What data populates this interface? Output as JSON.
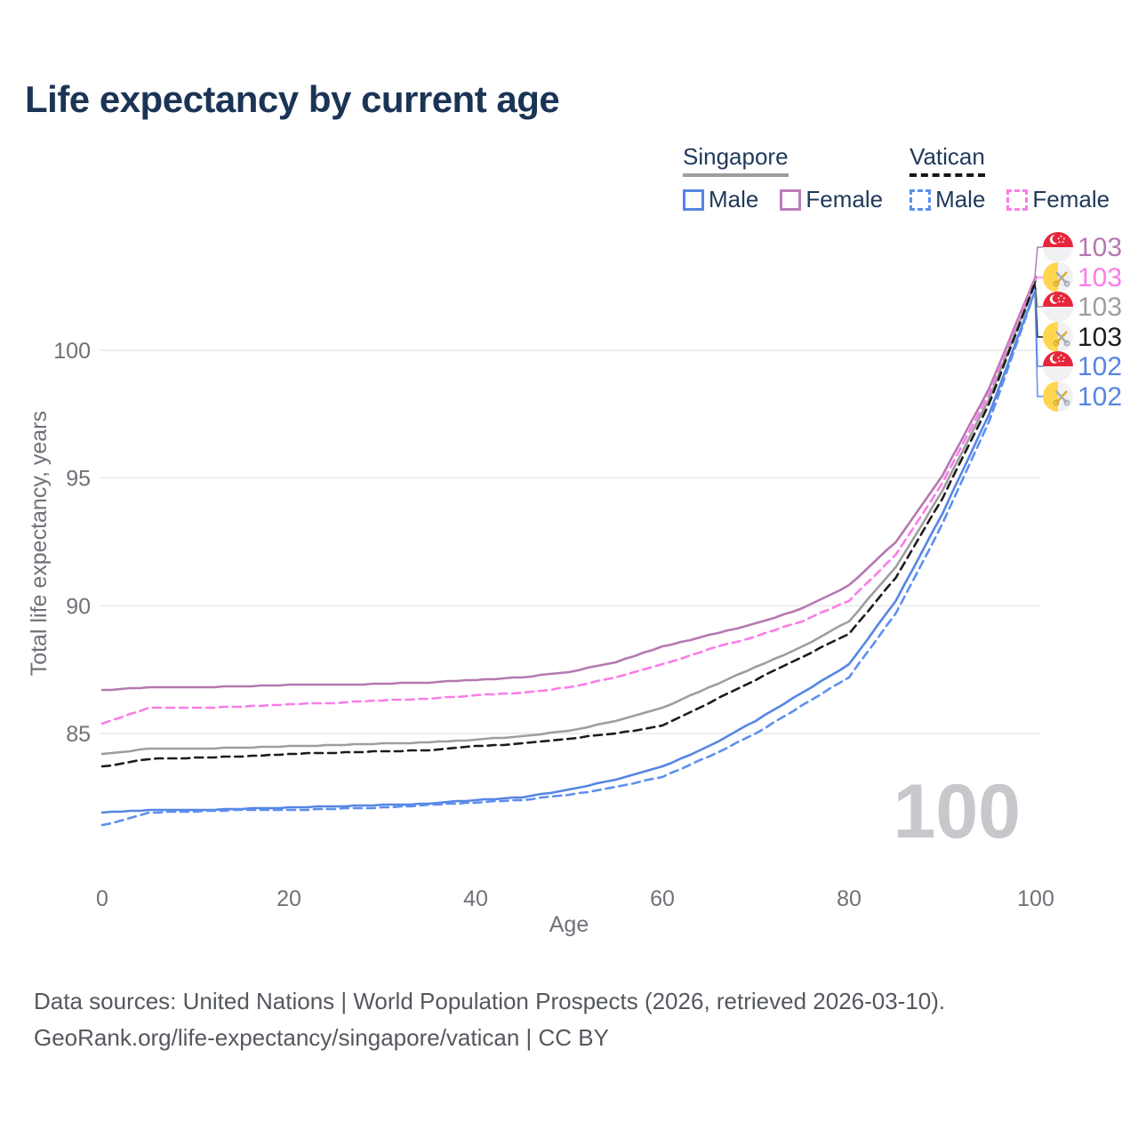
{
  "title": "Life expectancy by current age",
  "legend": {
    "groups": [
      {
        "title": "Singapore",
        "line_style": "solid",
        "underline_color": "#9e9e9e",
        "items": [
          {
            "label": "Male",
            "color": "#5585e3"
          },
          {
            "label": "Female",
            "color": "#bd7cba"
          }
        ]
      },
      {
        "title": "Vatican",
        "line_style": "dashed",
        "underline_color": "#17181a",
        "items": [
          {
            "label": "Male",
            "color": "#5d8ff0"
          },
          {
            "label": "Female",
            "color": "#fb7ce8"
          }
        ]
      }
    ]
  },
  "chart_data": {
    "type": "line",
    "title": "Life expectancy by current age",
    "xlabel": "Age",
    "ylabel": "Total life expectancy, years",
    "xlim": [
      0,
      100
    ],
    "ylim": [
      81,
      103.5
    ],
    "xticks": [
      0,
      20,
      40,
      60,
      80,
      100
    ],
    "yticks": [
      85,
      90,
      95,
      100
    ],
    "grid": "horizontal",
    "watermark": "100",
    "axis_color": "#6e7278",
    "grid_color": "#ededef",
    "watermark_color": "#c7c7cc",
    "x": [
      0,
      5,
      10,
      15,
      20,
      25,
      30,
      35,
      40,
      45,
      50,
      55,
      60,
      65,
      70,
      75,
      80,
      85,
      90,
      95,
      100
    ],
    "series": [
      {
        "name": "Singapore Female",
        "country": "Singapore",
        "sex": "Female",
        "line": "solid",
        "color": "#b678b1",
        "flag": "singapore",
        "end_label": "103",
        "values": [
          86.7,
          86.8,
          86.8,
          86.85,
          86.9,
          86.9,
          86.95,
          87.0,
          87.1,
          87.2,
          87.4,
          87.8,
          88.4,
          88.85,
          89.3,
          89.9,
          90.8,
          92.5,
          95.1,
          98.5,
          102.9
        ]
      },
      {
        "name": "Vatican Female",
        "country": "Vatican",
        "sex": "Female",
        "line": "dashed",
        "color": "#fb7ce8",
        "flag": "vatican",
        "end_label": "103",
        "values": [
          85.4,
          86.0,
          86.0,
          86.05,
          86.15,
          86.2,
          86.3,
          86.35,
          86.5,
          86.6,
          86.8,
          87.2,
          87.7,
          88.3,
          88.8,
          89.4,
          90.2,
          92.0,
          94.8,
          98.3,
          102.8
        ]
      },
      {
        "name": "Singapore",
        "country": "Singapore",
        "sex": "Total",
        "line": "solid",
        "color": "#9e9e9e",
        "flag": "singapore",
        "end_label": "103",
        "values": [
          84.2,
          84.4,
          84.4,
          84.45,
          84.5,
          84.55,
          84.6,
          84.65,
          84.75,
          84.9,
          85.1,
          85.5,
          86.0,
          86.8,
          87.6,
          88.4,
          89.4,
          91.5,
          94.5,
          98.1,
          102.7
        ]
      },
      {
        "name": "Vatican",
        "country": "Vatican",
        "sex": "Total",
        "line": "dashed",
        "color": "#1c1c1e",
        "flag": "vatican",
        "end_label": "103",
        "values": [
          83.7,
          84.0,
          84.05,
          84.1,
          84.2,
          84.25,
          84.3,
          84.35,
          84.5,
          84.6,
          84.8,
          85.0,
          85.3,
          86.2,
          87.1,
          88.0,
          88.9,
          91.1,
          94.2,
          97.9,
          102.7
        ]
      },
      {
        "name": "Singapore Male",
        "country": "Singapore",
        "sex": "Male",
        "line": "solid",
        "color": "#5585e3",
        "flag": "singapore",
        "end_label": "102",
        "values": [
          81.9,
          82.0,
          82.0,
          82.05,
          82.1,
          82.15,
          82.2,
          82.25,
          82.4,
          82.5,
          82.8,
          83.2,
          83.7,
          84.5,
          85.5,
          86.6,
          87.7,
          90.2,
          93.6,
          97.5,
          102.4
        ]
      },
      {
        "name": "Vatican Male",
        "country": "Vatican",
        "sex": "Male",
        "line": "dashed",
        "color": "#5d8ff0",
        "flag": "vatican",
        "end_label": "102",
        "label_color": "#5585e3",
        "values": [
          81.4,
          81.9,
          81.95,
          82.0,
          82.0,
          82.05,
          82.1,
          82.2,
          82.3,
          82.4,
          82.6,
          82.9,
          83.3,
          84.1,
          85.0,
          86.1,
          87.2,
          89.7,
          93.2,
          97.2,
          102.4
        ]
      }
    ]
  },
  "footer": {
    "line1": "Data sources: United Nations | World Population Prospects (2026, retrieved 2026-03-10).",
    "line2": "GeoRank.org/life-expectancy/singapore/vatican | CC BY"
  }
}
